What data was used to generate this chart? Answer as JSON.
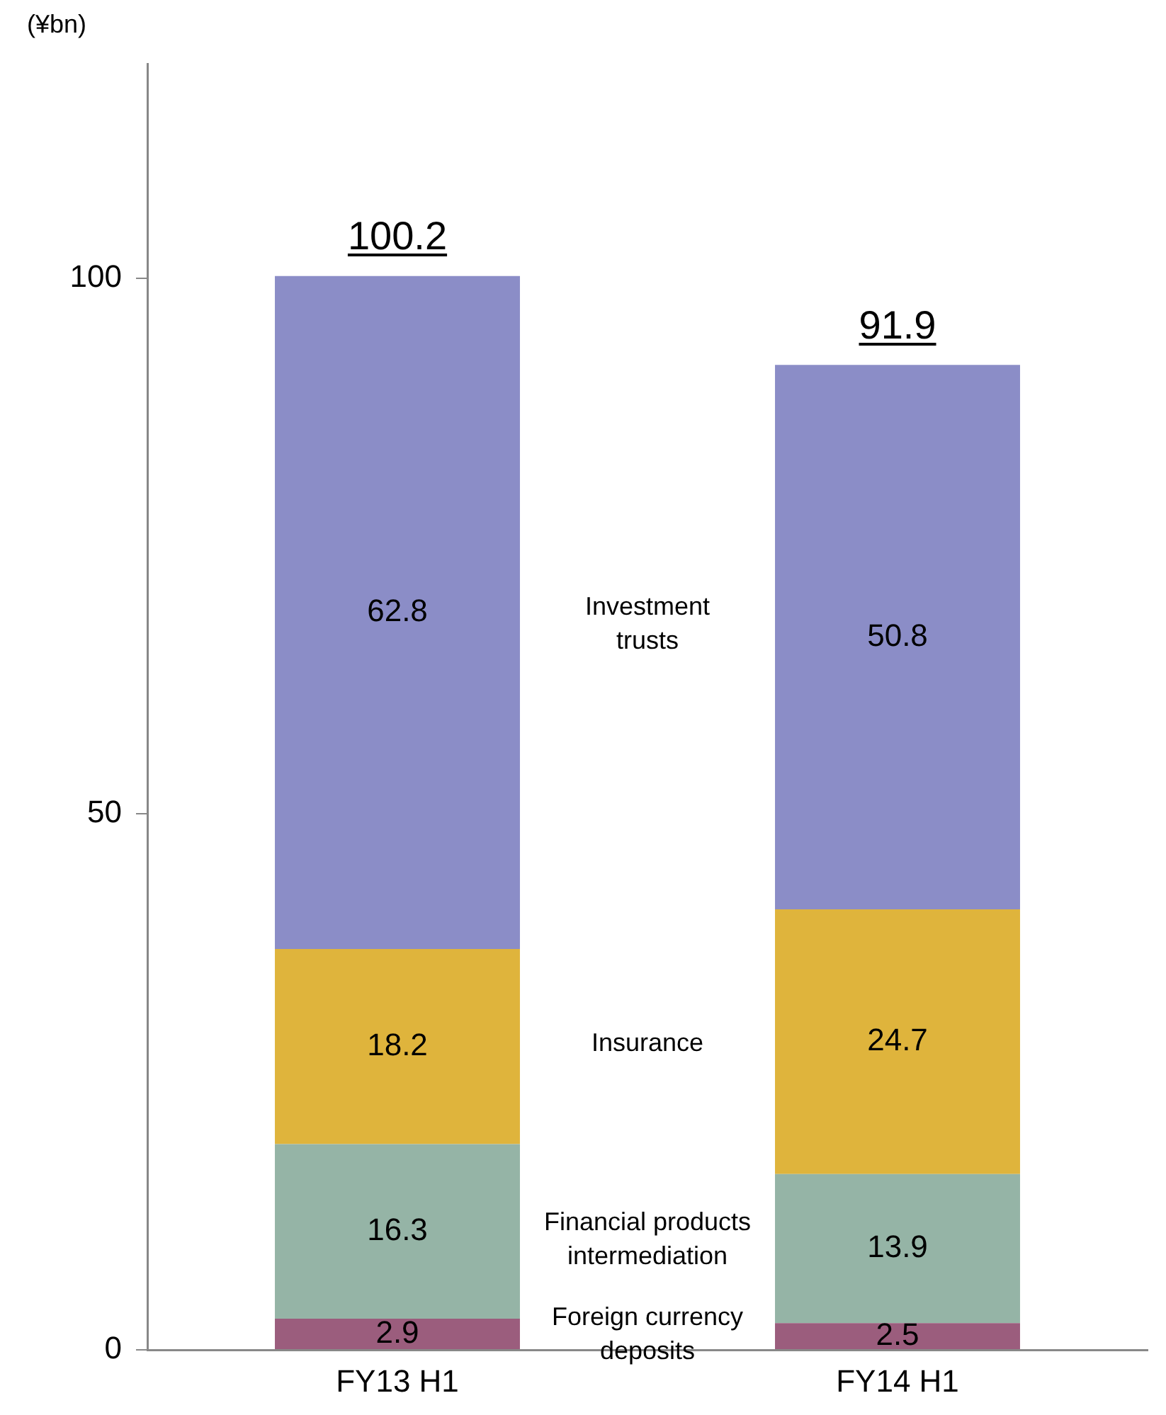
{
  "chart_data": {
    "type": "bar",
    "stacked": true,
    "ylabel": "(¥bn)",
    "categories": [
      "FY13 H1",
      "FY14 H1"
    ],
    "series": [
      {
        "name": "Foreign currency deposits",
        "color": "#9b5d7d",
        "values": [
          2.9,
          2.5
        ]
      },
      {
        "name": "Financial products intermediation",
        "color": "#95b4a6",
        "values": [
          16.3,
          13.9
        ]
      },
      {
        "name": "Insurance",
        "color": "#dfb43c",
        "values": [
          18.2,
          24.7
        ]
      },
      {
        "name": "Investment trusts",
        "color": "#8b8dc7",
        "values": [
          62.8,
          50.8
        ]
      }
    ],
    "data_labels": true,
    "totals": [
      "100.2",
      "91.9"
    ],
    "ylim": [
      0,
      120
    ],
    "yticks": [
      0,
      50,
      100
    ],
    "grid": false,
    "legend": false
  }
}
